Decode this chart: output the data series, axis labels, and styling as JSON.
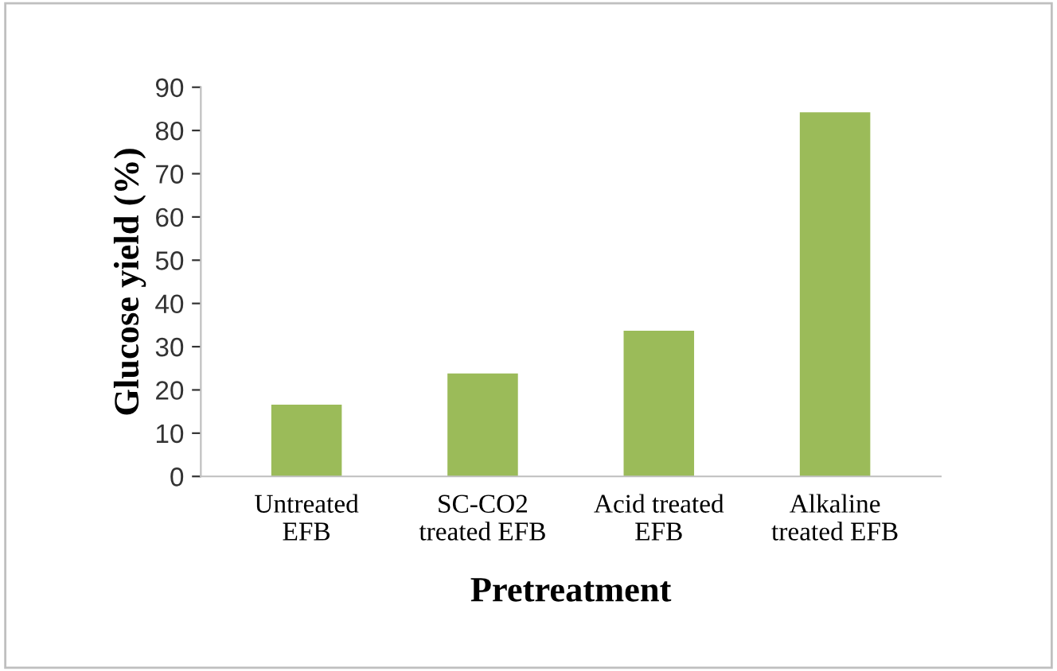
{
  "chart_data": {
    "type": "bar",
    "xlabel": "Pretreatment",
    "ylabel": "Glucose yield (%)",
    "categories": [
      "Untreated\nEFB",
      "SC-CO2\ntreated EFB",
      "Acid treated\nEFB",
      "Alkaline\ntreated EFB"
    ],
    "values": [
      16.6,
      23.8,
      33.7,
      84.2
    ],
    "color": "#9bbb59",
    "ylim": [
      0,
      90
    ],
    "yticks": [
      0,
      10,
      20,
      30,
      40,
      50,
      60,
      70,
      80,
      90
    ],
    "grid": false,
    "legend": false
  }
}
